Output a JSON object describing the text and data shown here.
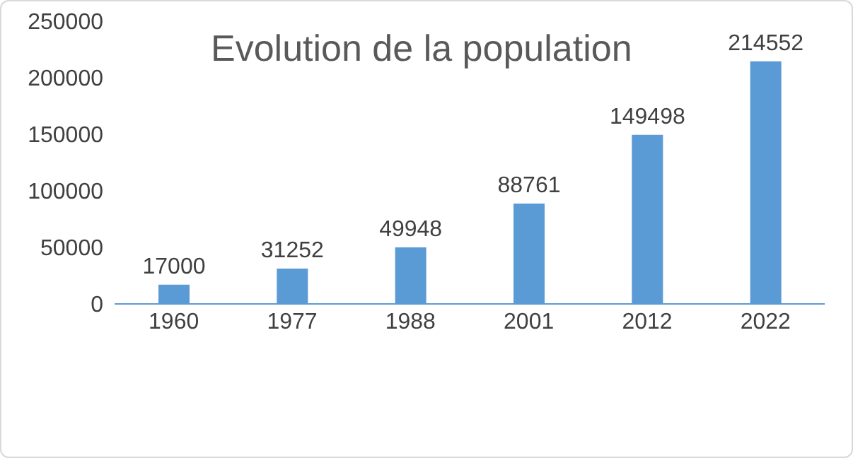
{
  "chart_data": {
    "type": "bar",
    "title": "Evolution de la population",
    "categories": [
      "1960",
      "1977",
      "1988",
      "2001",
      "2012",
      "2022"
    ],
    "values": [
      17000,
      31252,
      49948,
      88761,
      149498,
      214552
    ],
    "color": "#5b9bd5",
    "ylim": [
      0,
      250000
    ],
    "yticks": [
      0,
      50000,
      100000,
      150000,
      200000,
      250000
    ],
    "data_labels": true
  }
}
